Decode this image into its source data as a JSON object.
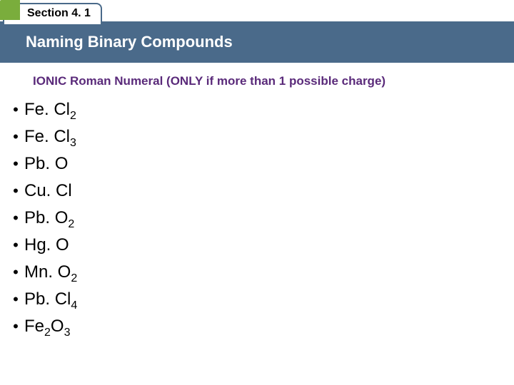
{
  "header": {
    "section_label": "Section 4. 1",
    "title": "Naming Binary Compounds"
  },
  "subheading": "IONIC Roman Numeral (ONLY if more than 1 possible charge)",
  "compounds": [
    {
      "base": "Fe. Cl",
      "sub": "2"
    },
    {
      "base": "Fe. Cl",
      "sub": "3"
    },
    {
      "base": "Pb. O",
      "sub": ""
    },
    {
      "base": "Cu. Cl",
      "sub": ""
    },
    {
      "base": "Pb. O",
      "sub": "2"
    },
    {
      "base": "Hg. O",
      "sub": ""
    },
    {
      "base": "Mn. O",
      "sub": "2"
    },
    {
      "base": "Pb. Cl",
      "sub": "4"
    },
    {
      "base_a": "Fe",
      "sub_a": "2",
      "base_b": "O",
      "sub_b": "3",
      "split": true
    }
  ],
  "colors": {
    "bar": "#4a6a8a",
    "green": "#7aad3c",
    "subheading": "#5a2a7a"
  }
}
